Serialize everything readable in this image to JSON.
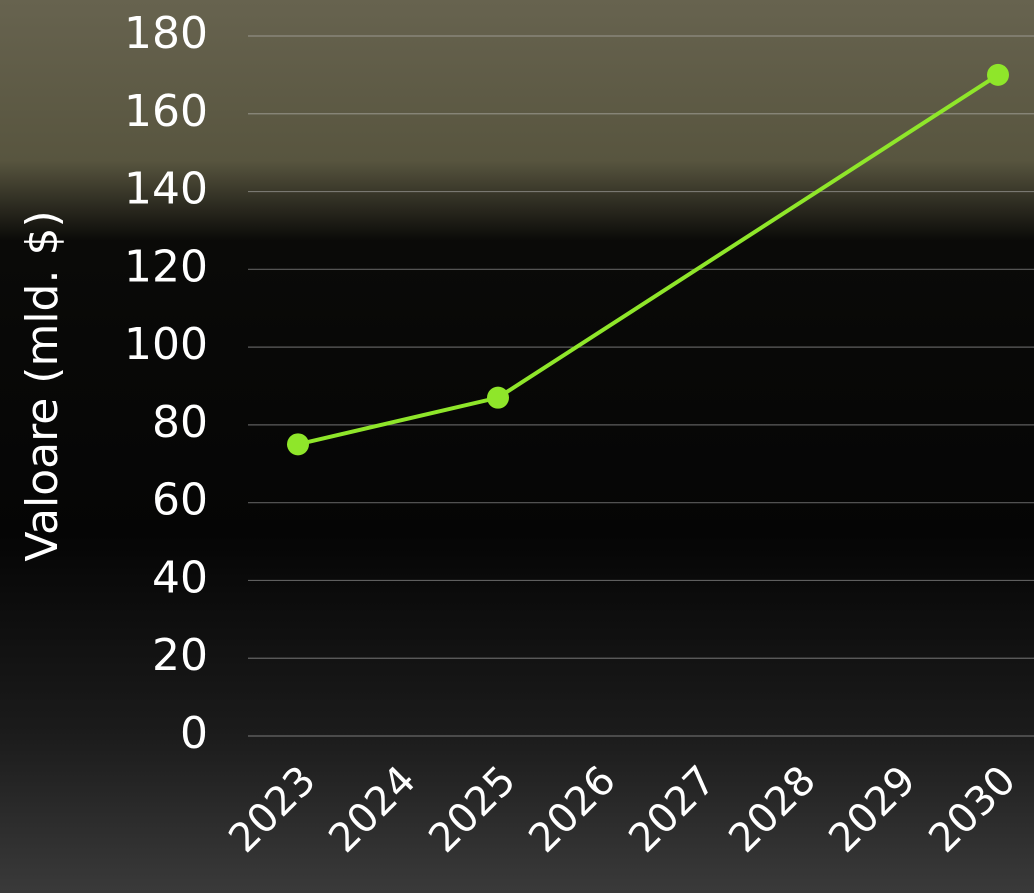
{
  "chart_data": {
    "type": "line",
    "y_label": "Valoare (mld. $)",
    "x": [
      2023,
      2025,
      2030
    ],
    "series": [
      {
        "color": "#8fe62a",
        "values": [
          75,
          87,
          170
        ]
      }
    ],
    "xlim": [
      2023,
      2030
    ],
    "xticks": [
      2023,
      2024,
      2025,
      2026,
      2027,
      2028,
      2029,
      2030
    ],
    "ylim": [
      0,
      180
    ],
    "yticks": [
      0,
      20,
      40,
      60,
      80,
      100,
      120,
      140,
      160,
      180
    ],
    "grid": true
  }
}
